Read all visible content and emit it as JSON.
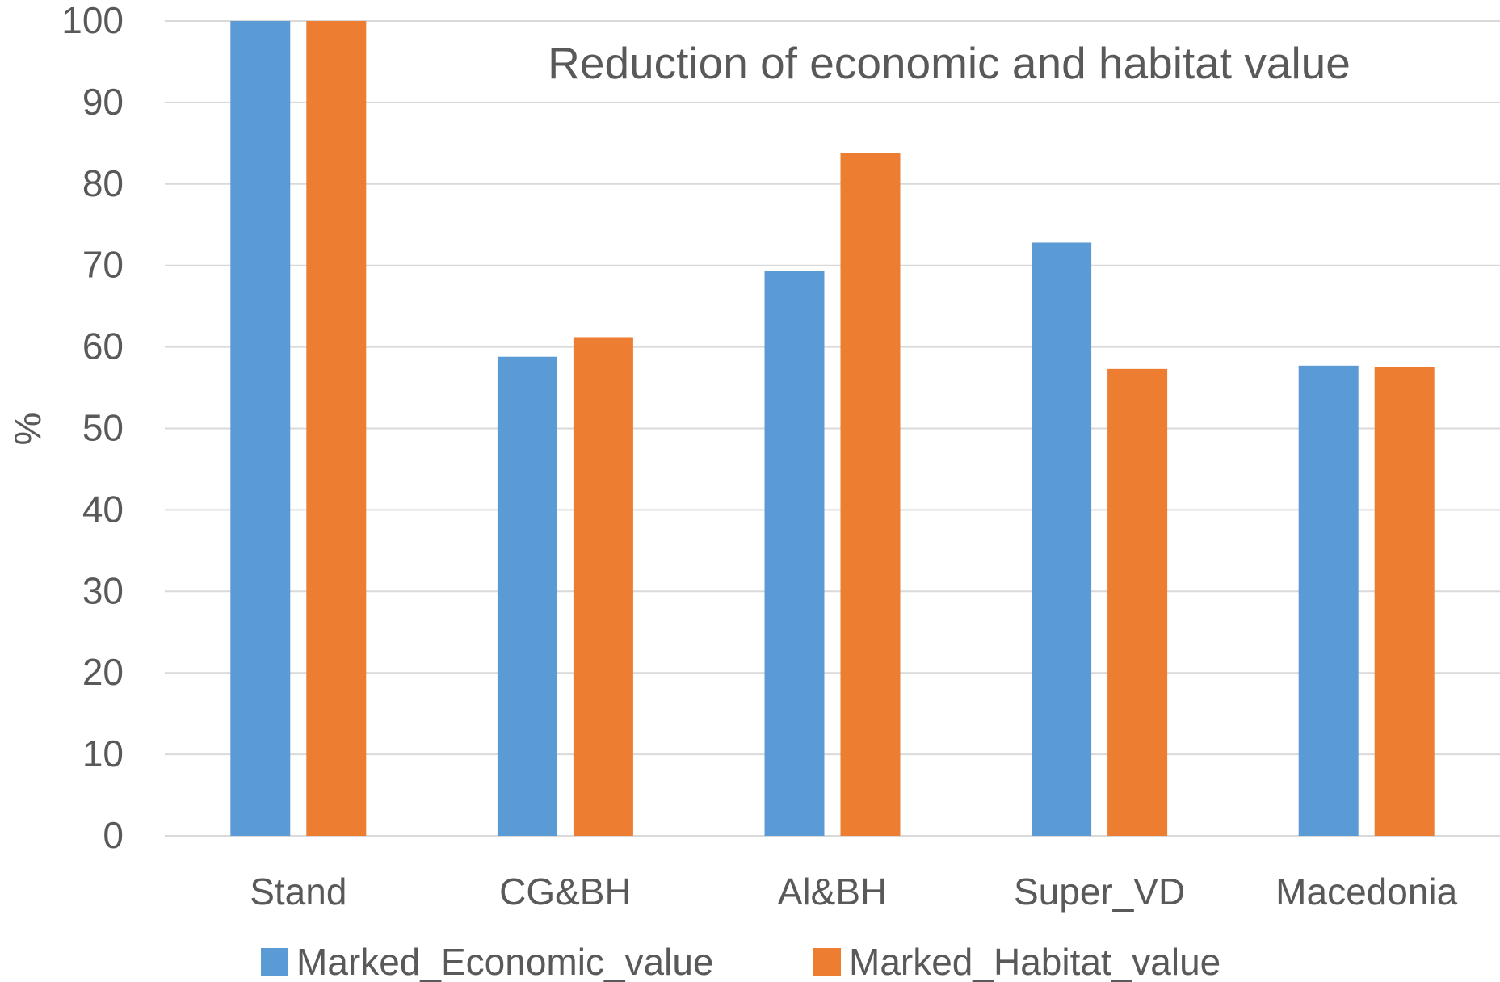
{
  "chart_data": {
    "type": "bar",
    "title": "Reduction of economic and habitat value",
    "ylabel": "%",
    "xlabel": "",
    "ylim": [
      0,
      100
    ],
    "yticks": [
      0,
      10,
      20,
      30,
      40,
      50,
      60,
      70,
      80,
      90,
      100
    ],
    "grid": true,
    "legend_position": "bottom",
    "categories": [
      "Stand",
      "CG&BH",
      "Al&BH",
      "Super_VD",
      "Macedonia"
    ],
    "series": [
      {
        "name": "Marked_Economic_value",
        "color": "#5b9bd5",
        "values": [
          100,
          58.8,
          69.3,
          72.8,
          57.7
        ]
      },
      {
        "name": "Marked_Habitat_value",
        "color": "#ed7d31",
        "values": [
          100,
          61.2,
          83.8,
          57.3,
          57.5
        ]
      }
    ]
  }
}
